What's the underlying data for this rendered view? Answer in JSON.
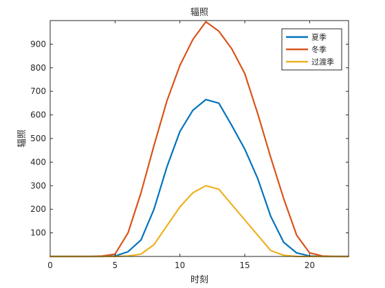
{
  "chart_data": {
    "type": "line",
    "title": "辐照",
    "xlabel": "时刻",
    "ylabel": "辐照",
    "xlim": [
      0,
      23
    ],
    "ylim": [
      0,
      1000
    ],
    "xticks": [
      0,
      5,
      10,
      15,
      20
    ],
    "yticks": [
      100,
      200,
      300,
      400,
      500,
      600,
      700,
      800,
      900
    ],
    "grid": false,
    "legend_position": "top-right",
    "x": [
      0,
      1,
      2,
      3,
      4,
      5,
      6,
      7,
      8,
      9,
      10,
      11,
      12,
      13,
      14,
      15,
      16,
      17,
      18,
      19,
      20,
      21,
      22,
      23
    ],
    "series": [
      {
        "name": "夏季",
        "color": "#0072BD",
        "values": [
          0,
          0,
          0,
          0,
          0,
          2,
          20,
          70,
          200,
          380,
          530,
          620,
          665,
          650,
          555,
          455,
          330,
          170,
          60,
          15,
          2,
          0,
          0,
          0
        ]
      },
      {
        "name": "冬季",
        "color": "#D95319",
        "values": [
          0,
          0,
          0,
          0,
          2,
          10,
          100,
          270,
          470,
          660,
          810,
          920,
          995,
          955,
          880,
          775,
          605,
          420,
          245,
          90,
          15,
          2,
          0,
          0
        ]
      },
      {
        "name": "过渡季",
        "color": "#EDB120",
        "values": [
          0,
          0,
          0,
          0,
          0,
          0,
          2,
          10,
          50,
          130,
          210,
          270,
          300,
          285,
          220,
          155,
          90,
          25,
          5,
          0,
          0,
          0,
          0,
          0
        ]
      }
    ]
  }
}
